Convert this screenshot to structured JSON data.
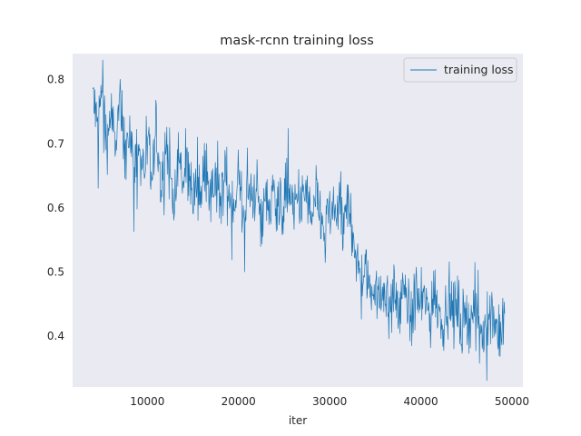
{
  "chart_data": {
    "type": "line",
    "title": "mask-rcnn training loss",
    "xlabel": "iter",
    "ylabel": "",
    "xlim": [
      1800,
      51200
    ],
    "ylim": [
      0.32,
      0.84
    ],
    "x_ticks": [
      10000,
      20000,
      30000,
      40000,
      50000
    ],
    "y_ticks": [
      0.4,
      0.5,
      0.6,
      0.7,
      0.8
    ],
    "grid": false,
    "legend": {
      "placement": "top-right"
    },
    "background_color": "#eaeaf2",
    "series": [
      {
        "name": "training loss",
        "color": "#1f77b4",
        "x": [
          4000,
          4500,
          5000,
          5500,
          6000,
          6500,
          7000,
          7500,
          8000,
          8500,
          9000,
          9500,
          10000,
          10500,
          11000,
          11500,
          12000,
          12500,
          13000,
          13500,
          14000,
          14500,
          15000,
          15500,
          16000,
          16500,
          17000,
          17500,
          18000,
          18500,
          19000,
          19500,
          20000,
          20500,
          21000,
          21500,
          22000,
          22500,
          23000,
          23500,
          24000,
          24500,
          25000,
          25500,
          26000,
          26500,
          27000,
          27500,
          28000,
          28500,
          29000,
          29500,
          30000,
          30500,
          31000,
          31500,
          32000,
          32500,
          33000,
          33500,
          34000,
          34500,
          35000,
          35500,
          36000,
          36500,
          37000,
          37500,
          38000,
          38500,
          39000,
          39500,
          40000,
          40500,
          41000,
          41500,
          42000,
          42500,
          43000,
          43500,
          44000,
          44500,
          45000,
          45500,
          46000,
          46500,
          47000,
          47500,
          48000,
          48500,
          49000,
          49200
        ],
        "values": [
          0.78,
          0.72,
          0.79,
          0.7,
          0.75,
          0.69,
          0.77,
          0.68,
          0.72,
          0.66,
          0.71,
          0.65,
          0.69,
          0.64,
          0.72,
          0.62,
          0.7,
          0.66,
          0.6,
          0.68,
          0.63,
          0.67,
          0.61,
          0.65,
          0.62,
          0.68,
          0.6,
          0.64,
          0.59,
          0.66,
          0.62,
          0.6,
          0.65,
          0.58,
          0.63,
          0.61,
          0.64,
          0.57,
          0.62,
          0.6,
          0.63,
          0.59,
          0.61,
          0.64,
          0.58,
          0.62,
          0.6,
          0.63,
          0.57,
          0.61,
          0.59,
          0.55,
          0.6,
          0.58,
          0.62,
          0.56,
          0.6,
          0.58,
          0.52,
          0.48,
          0.5,
          0.46,
          0.49,
          0.45,
          0.48,
          0.44,
          0.47,
          0.43,
          0.48,
          0.45,
          0.42,
          0.47,
          0.44,
          0.46,
          0.43,
          0.47,
          0.44,
          0.42,
          0.46,
          0.43,
          0.45,
          0.41,
          0.44,
          0.42,
          0.45,
          0.4,
          0.43,
          0.41,
          0.44,
          0.39,
          0.42,
          0.4
        ],
        "noise_amplitude": 0.045
      }
    ]
  }
}
